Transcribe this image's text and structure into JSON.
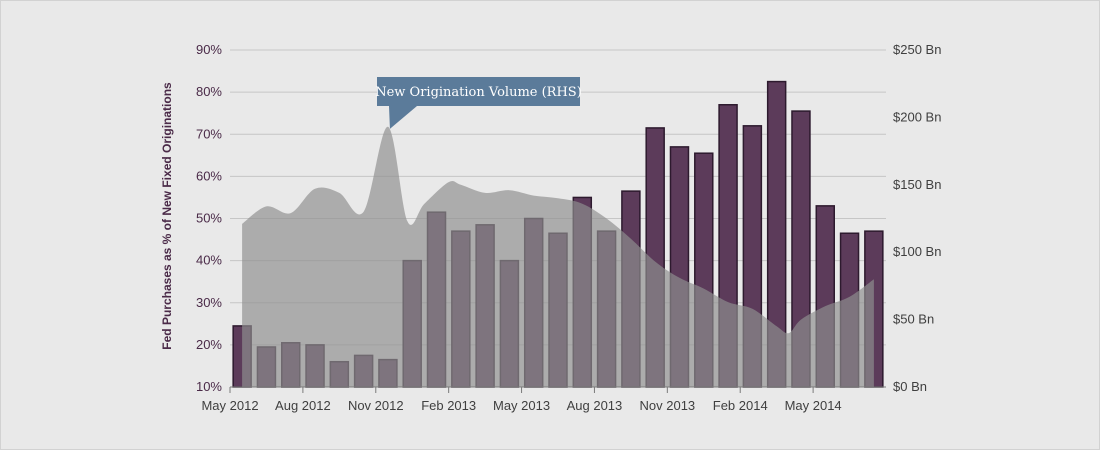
{
  "chart_data": {
    "type": "bar",
    "categories": [
      "May 2012",
      "Jun 2012",
      "Jul 2012",
      "Aug 2012",
      "Sep 2012",
      "Oct 2012",
      "Nov 2012",
      "Dec 2012",
      "Jan 2013",
      "Feb 2013",
      "Mar 2013",
      "Apr 2013",
      "May 2013",
      "Jun 2013",
      "Jul 2013",
      "Aug 2013",
      "Sep 2013",
      "Oct 2013",
      "Nov 2013",
      "Dec 2013",
      "Jan 2014",
      "Feb 2014",
      "Mar 2014",
      "Apr 2014",
      "May 2014",
      "Jun 2014",
      "Jul 2014"
    ],
    "x_tick_labels": [
      {
        "index": 0,
        "label": "May 2012"
      },
      {
        "index": 3,
        "label": "Aug 2012"
      },
      {
        "index": 6,
        "label": "Nov 2012"
      },
      {
        "index": 9,
        "label": "Feb 2013"
      },
      {
        "index": 12,
        "label": "May 2013"
      },
      {
        "index": 15,
        "label": "Aug 2013"
      },
      {
        "index": 18,
        "label": "Nov 2013"
      },
      {
        "index": 21,
        "label": "Feb 2014"
      },
      {
        "index": 24,
        "label": "May 2014"
      }
    ],
    "series": [
      {
        "type": "bar",
        "axis": "left",
        "values": [
          24.5,
          19.5,
          20.5,
          20,
          16,
          17.5,
          16.5,
          40,
          51.5,
          47,
          48.5,
          40,
          50,
          46.5,
          55,
          47,
          56.5,
          71.5,
          67,
          65.5,
          77,
          72,
          82.5,
          75.5,
          53,
          46.5,
          47
        ],
        "color": "#5c3b5a"
      },
      {
        "type": "area",
        "axis": "right",
        "name": "New Origination Volume (RHS)",
        "x": [
          0,
          1,
          2,
          3,
          4,
          5,
          6,
          6.8,
          7.5,
          8.5,
          9,
          10,
          11,
          12,
          13,
          14,
          15,
          16,
          17,
          18,
          19,
          20,
          21,
          22,
          22.5,
          23,
          24,
          25,
          26
        ],
        "values": [
          121,
          134,
          129,
          147,
          144,
          130,
          193,
          123,
          136,
          152,
          150,
          144,
          146,
          142,
          140,
          136,
          125,
          110,
          93,
          81,
          73,
          63,
          58,
          45,
          40,
          50,
          60,
          67,
          80
        ],
        "color": "#8f8f8f"
      }
    ],
    "left_axis": {
      "ylabel": "Fed Purchases as % of New Fixed Originations",
      "ylim": [
        10,
        90
      ],
      "ticks": [
        "10%",
        "20%",
        "30%",
        "40%",
        "50%",
        "60%",
        "70%",
        "80%",
        "90%"
      ]
    },
    "right_axis": {
      "ylim": [
        0,
        250
      ],
      "ticks": [
        "$0 Bn",
        "$50 Bn",
        "$100 Bn",
        "$150 Bn",
        "$200 Bn",
        "$250 Bn"
      ]
    },
    "callout": "New Origination Volume (RHS)",
    "grid": true,
    "colors": {
      "background": "#e9e9e9",
      "bar_fill": "#5c3b5a",
      "bar_stroke": "#2d1a2e",
      "area_fill": "#8f8f8f",
      "gridline": "#c6c6c6",
      "callout": "#5b7b9a"
    }
  }
}
